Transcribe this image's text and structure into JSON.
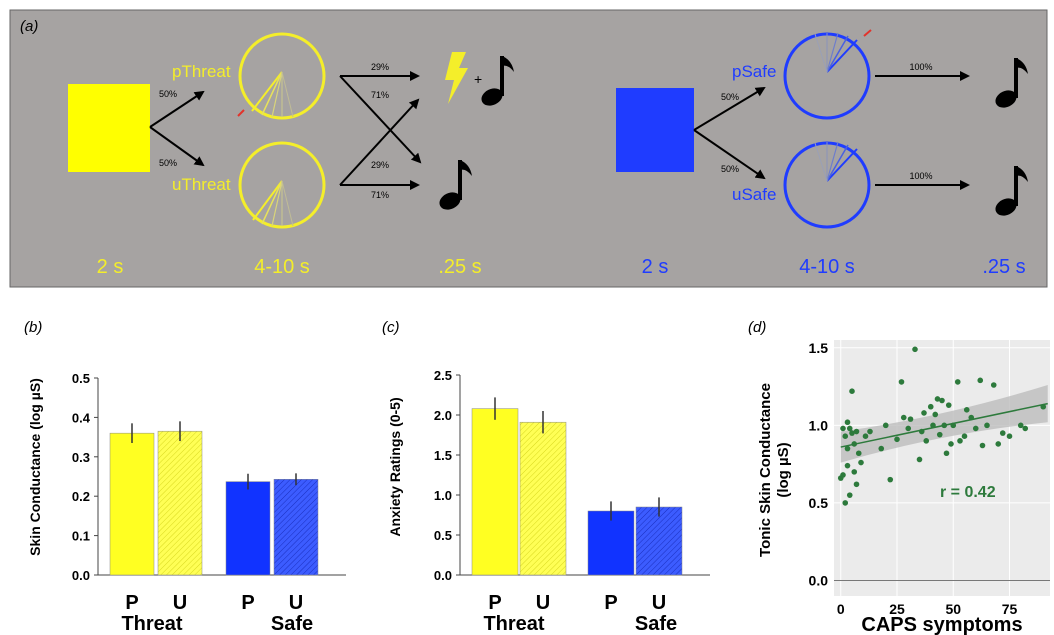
{
  "panel_a": {
    "label": "(a)",
    "threat": {
      "predictable_label": "pThreat",
      "unpredictable_label": "uThreat",
      "split_pct_top": "50%",
      "split_pct_bottom": "50%",
      "p_to_shock": "29%",
      "p_to_tone": "71%",
      "u_to_shock": "29%",
      "u_to_tone": "71%",
      "plus": "+",
      "time_cue": "2 s",
      "time_anticipation": "4-10 s",
      "time_outcome": ".25 s",
      "color": "#f4ee2a"
    },
    "safe": {
      "predictable_label": "pSafe",
      "unpredictable_label": "uSafe",
      "split_pct_top": "50%",
      "split_pct_bottom": "50%",
      "p_to_tone": "100%",
      "u_to_tone": "100%",
      "time_cue": "2 s",
      "time_anticipation": "4-10 s",
      "time_outcome": ".25 s",
      "color": "#1f3cff"
    },
    "icons": [
      "lightning-bolt-icon",
      "music-note-icon"
    ],
    "background_color": "#a6a3a2"
  },
  "chart_data": [
    {
      "type": "bar",
      "panel_label": "(b)",
      "ylabel": "Skin Conductance (log µS)",
      "ylim": [
        0,
        0.5
      ],
      "yticks": [
        "0.0",
        "0.1",
        "0.2",
        "0.3",
        "0.4",
        "0.5"
      ],
      "groups": [
        "Threat",
        "Safe"
      ],
      "categories": [
        "P",
        "U",
        "P",
        "U"
      ],
      "values": [
        0.36,
        0.365,
        0.237,
        0.243
      ],
      "errors": [
        0.025,
        0.025,
        0.02,
        0.015
      ],
      "colors": [
        "#ffff22",
        "#ffff66",
        "#1133ff",
        "#3355ff"
      ]
    },
    {
      "type": "bar",
      "panel_label": "(c)",
      "ylabel": "Anxiety Ratings (0-5)",
      "ylim": [
        0,
        2.5
      ],
      "yticks": [
        "0.0",
        "0.5",
        "1.0",
        "1.5",
        "2.0",
        "2.5"
      ],
      "groups": [
        "Threat",
        "Safe"
      ],
      "categories": [
        "P",
        "U",
        "P",
        "U"
      ],
      "values": [
        2.08,
        1.91,
        0.8,
        0.85
      ],
      "errors": [
        0.14,
        0.14,
        0.12,
        0.12
      ],
      "colors": [
        "#ffff22",
        "#ffff66",
        "#1133ff",
        "#3355ff"
      ]
    },
    {
      "type": "scatter",
      "panel_label": "(d)",
      "xlabel": "CAPS symptoms",
      "ylabel": "Tonic Skin Conductance (log µS)",
      "xlim": [
        -3,
        93
      ],
      "ylim": [
        -0.1,
        1.55
      ],
      "xticks": [
        "0",
        "25",
        "50",
        "75"
      ],
      "yticks": [
        "0.0",
        "0.5",
        "1.0",
        "1.5"
      ],
      "annotation": "r = 0.42",
      "grid": true,
      "point_color": "#2d7a3c",
      "fit_line": {
        "x": [
          0,
          92
        ],
        "y": [
          0.86,
          1.14
        ]
      },
      "x": [
        0,
        1,
        1,
        2,
        2,
        3,
        3,
        3,
        4,
        4,
        5,
        5,
        6,
        6,
        7,
        7,
        8,
        9,
        11,
        13,
        18,
        20,
        22,
        25,
        27,
        28,
        30,
        31,
        33,
        35,
        36,
        37,
        38,
        40,
        41,
        42,
        43,
        44,
        45,
        46,
        47,
        48,
        49,
        50,
        52,
        53,
        55,
        56,
        58,
        60,
        62,
        63,
        65,
        68,
        70,
        72,
        75,
        80,
        82,
        90
      ],
      "y": [
        0.66,
        0.98,
        0.68,
        0.93,
        0.5,
        1.02,
        0.74,
        0.85,
        0.98,
        0.55,
        0.95,
        1.22,
        0.88,
        0.7,
        0.62,
        0.96,
        0.82,
        0.76,
        0.93,
        0.96,
        0.85,
        1.0,
        0.65,
        0.91,
        1.28,
        1.05,
        0.98,
        1.04,
        1.49,
        0.78,
        0.96,
        1.08,
        0.9,
        1.12,
        1.0,
        1.07,
        1.17,
        0.94,
        1.16,
        1.0,
        0.82,
        1.13,
        0.88,
        1.0,
        1.28,
        0.9,
        0.93,
        1.1,
        1.05,
        0.98,
        1.29,
        0.87,
        1.0,
        1.26,
        0.88,
        0.95,
        0.93,
        1.0,
        0.98,
        1.12
      ]
    }
  ]
}
